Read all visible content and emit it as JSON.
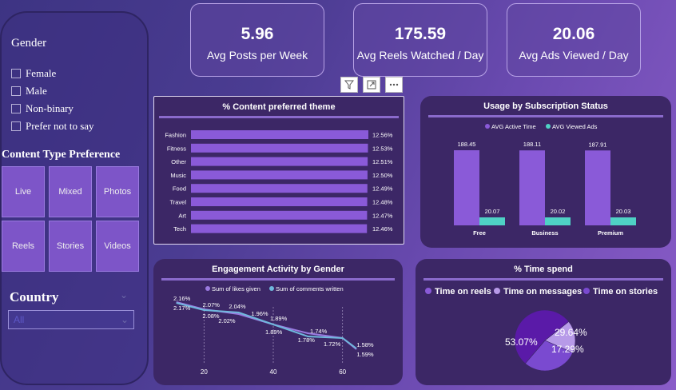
{
  "sidebar": {
    "gender_title": "Gender",
    "gender_options": [
      "Female",
      "Male",
      "Non-binary",
      "Prefer not to say"
    ],
    "content_type_title": "Content Type Preference",
    "content_types": [
      "Live",
      "Mixed",
      "Photos",
      "Reels",
      "Stories",
      "Videos"
    ],
    "country_title": "Country",
    "country_selected": "All"
  },
  "kpis": [
    {
      "value": "5.96",
      "label": "Avg Posts per Week"
    },
    {
      "value": "175.59",
      "label": "Avg Reels Watched / Day"
    },
    {
      "value": "20.06",
      "label": "Avg Ads Viewed / Day"
    }
  ],
  "toolbar": {
    "icons": [
      "filter-icon",
      "focus-mode-icon",
      "more-options-icon"
    ]
  },
  "colors": {
    "purple_bar": "#8a5ad8",
    "teal_bar": "#4fd1c5",
    "panel_bg": "#3c2766",
    "line_likes": "#9a7ae0",
    "line_comments": "#6fb8dc",
    "pie_reels": "#5a1aa8",
    "pie_messages": "#b79ae8",
    "pie_stories": "#7a4ad0"
  },
  "chart_data": [
    {
      "type": "bar",
      "orientation": "horizontal",
      "title": "% Content preferred theme",
      "categories": [
        "Fashion",
        "Fitness",
        "Other",
        "Music",
        "Food",
        "Travel",
        "Art",
        "Tech"
      ],
      "values": [
        12.56,
        12.53,
        12.51,
        12.5,
        12.49,
        12.48,
        12.47,
        12.46
      ],
      "labels": [
        "12.56%",
        "12.53%",
        "12.51%",
        "12.50%",
        "12.49%",
        "12.48%",
        "12.47%",
        "12.46%"
      ]
    },
    {
      "type": "bar",
      "title": "Usage by Subscription Status",
      "categories": [
        "Free",
        "Business",
        "Premium"
      ],
      "series": [
        {
          "name": "AVG Active Time",
          "values": [
            188.45,
            188.11,
            187.91
          ]
        },
        {
          "name": "AVG Viewed Ads",
          "values": [
            20.07,
            20.02,
            20.03
          ]
        }
      ],
      "legend_position": "top",
      "ylim": [
        0,
        200
      ]
    },
    {
      "type": "line",
      "title": "Engagement Activity by Gender",
      "series": [
        {
          "name": "Sum of likes given",
          "x": [
            12,
            20,
            30,
            40,
            50,
            60,
            64
          ],
          "y": [
            2.17,
            2.08,
            2.02,
            1.89,
            1.78,
            1.72,
            1.58
          ]
        },
        {
          "name": "Sum of comments written",
          "x": [
            12,
            20,
            30,
            40,
            50,
            60,
            64
          ],
          "y": [
            2.16,
            2.07,
            2.04,
            1.89,
            1.74,
            1.72,
            1.59
          ]
        }
      ],
      "point_labels": [
        {
          "x": 13,
          "y": 2.16,
          "text": "2.16%"
        },
        {
          "x": 13,
          "y": 2.17,
          "text": "2.17%"
        },
        {
          "x": 20,
          "y": 2.08,
          "text": "2.08%"
        },
        {
          "x": 21,
          "y": 2.07,
          "text": "2.07%"
        },
        {
          "x": 26,
          "y": 2.02,
          "text": "2.02%"
        },
        {
          "x": 29,
          "y": 2.04,
          "text": "2.04%"
        },
        {
          "x": 35,
          "y": 1.96,
          "text": "1.96%"
        },
        {
          "x": 40,
          "y": 1.89,
          "text": "1.89%"
        },
        {
          "x": 40,
          "y": 1.89,
          "text": "1.89%"
        },
        {
          "x": 48,
          "y": 1.78,
          "text": "1.78%"
        },
        {
          "x": 52,
          "y": 1.74,
          "text": "1.74%"
        },
        {
          "x": 55,
          "y": 1.72,
          "text": "1.72%"
        },
        {
          "x": 65,
          "y": 1.58,
          "text": "1.58%"
        },
        {
          "x": 65,
          "y": 1.59,
          "text": "1.59%"
        }
      ],
      "x_ticks": [
        "20",
        "40",
        "60"
      ],
      "xlim": [
        10,
        70
      ],
      "ylim": [
        1.45,
        2.25
      ],
      "legend_position": "top"
    },
    {
      "type": "pie",
      "title": "% Time spend",
      "labels": [
        "Time on reels",
        "Time on messages",
        "Time on stories"
      ],
      "values": [
        53.07,
        17.29,
        29.64
      ],
      "value_labels": [
        "53.07%",
        "17.29%",
        "29.64%"
      ],
      "legend_position": "top"
    }
  ]
}
